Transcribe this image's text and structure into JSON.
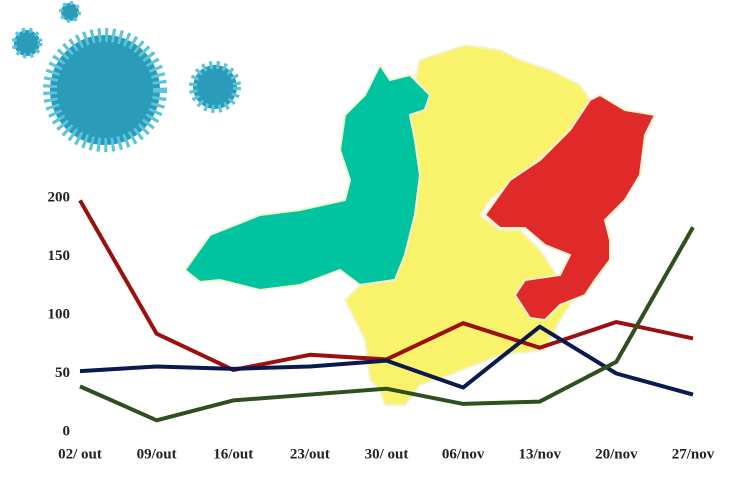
{
  "chart_data": {
    "type": "line",
    "categories": [
      "02/ out",
      "09/out",
      "16/out",
      "23/out",
      "30/ out",
      "06/nov",
      "13/nov",
      "20/nov",
      "27/nov"
    ],
    "series": [
      {
        "color": "#9b0f0f",
        "values": [
          198,
          84,
          53,
          66,
          62,
          93,
          72,
          94,
          80
        ]
      },
      {
        "color": "#0b1a4e",
        "values": [
          52,
          56,
          54,
          56,
          61,
          38,
          90,
          50,
          32
        ]
      },
      {
        "color": "#2f4f1f",
        "values": [
          39,
          10,
          27,
          32,
          37,
          24,
          26,
          60,
          175
        ]
      }
    ],
    "ylim": [
      0,
      200
    ],
    "yticks": [
      0,
      50,
      100,
      150,
      200
    ],
    "grid": false
  }
}
